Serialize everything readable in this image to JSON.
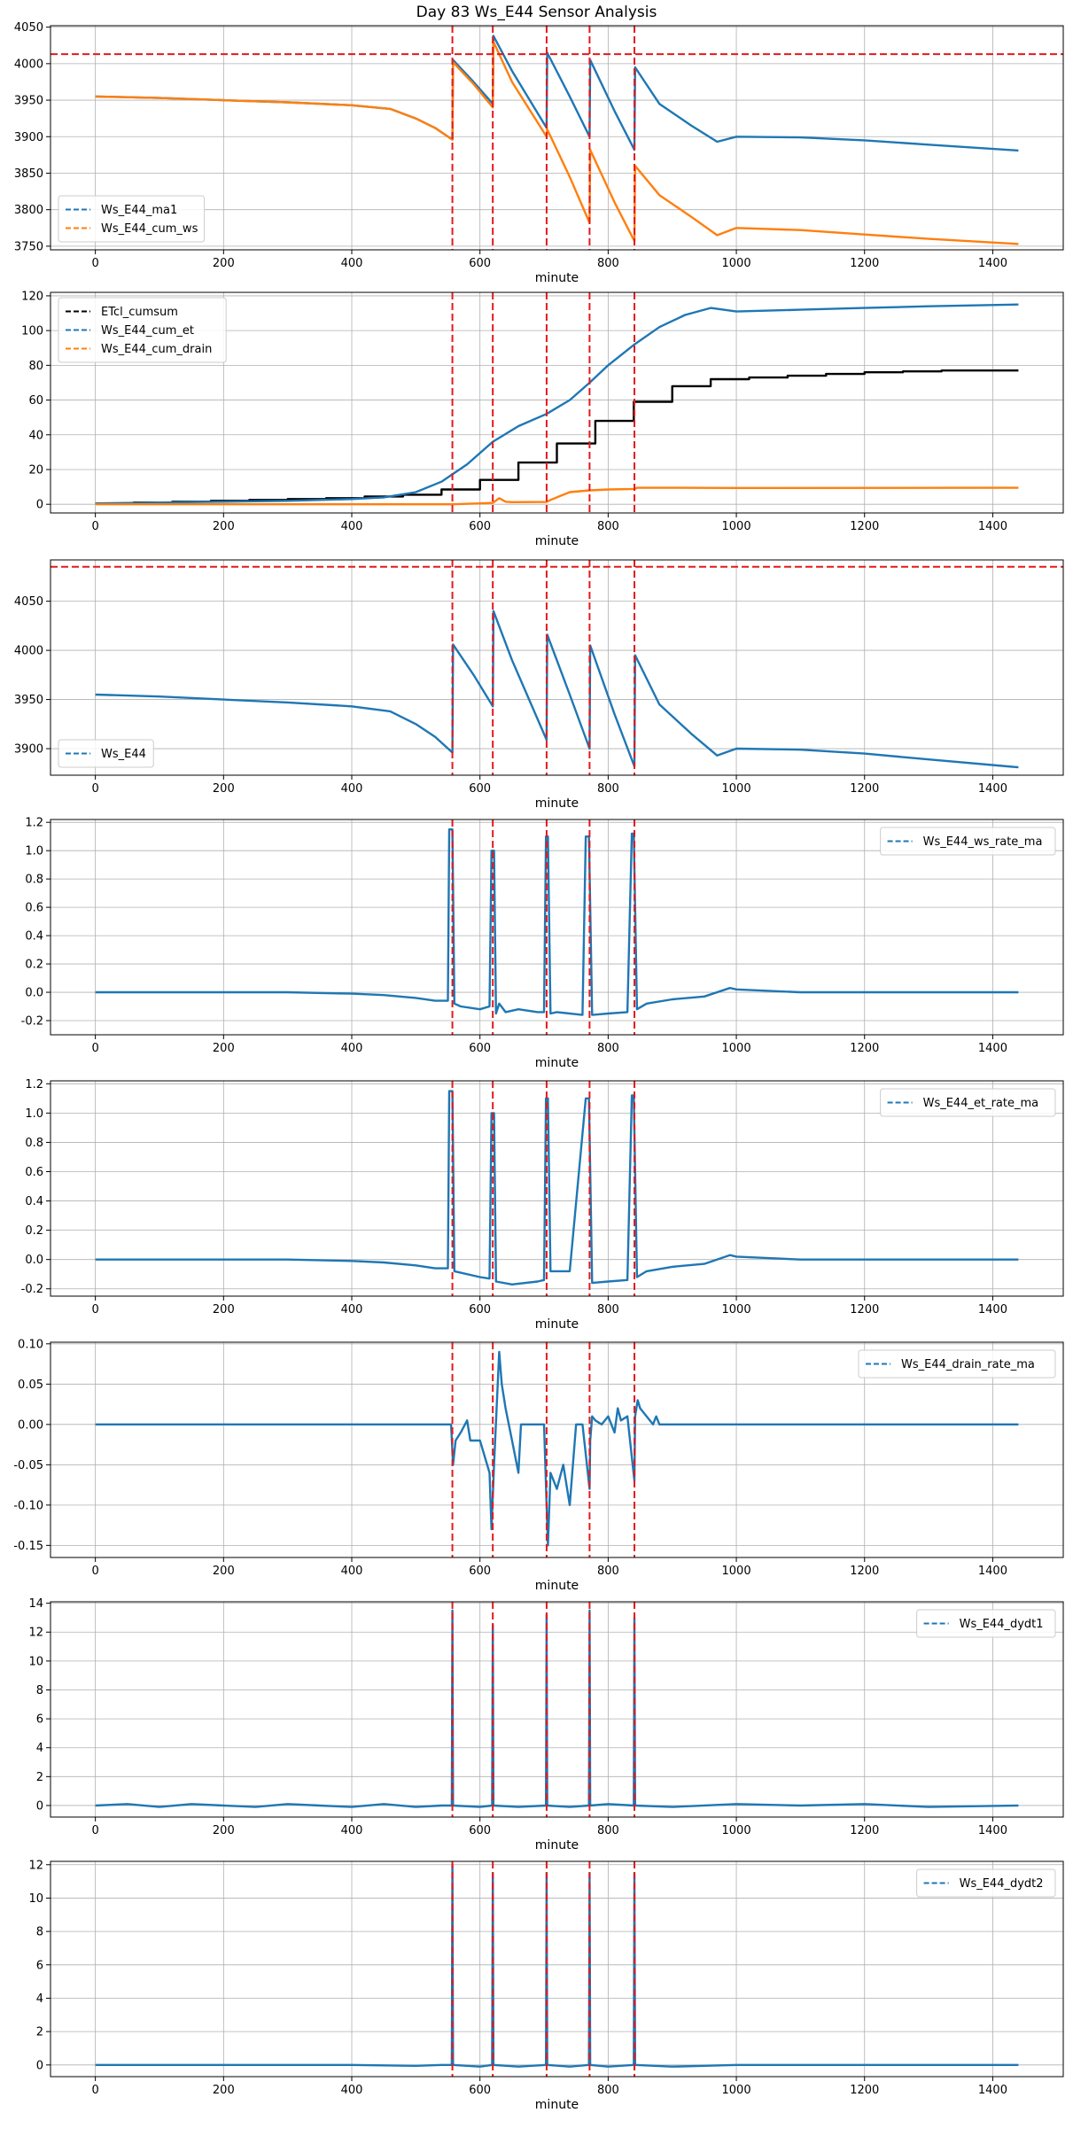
{
  "figure": {
    "title": "Day 83 Ws_E44 Sensor Analysis"
  },
  "colors": {
    "blue": "#1f77b4",
    "orange": "#ff7f0e",
    "black": "#000000",
    "red": "#e31a1c",
    "grid": "#b0b0b0"
  },
  "chart_data": [
    {
      "type": "line",
      "xlabel": "minute",
      "xlim": [
        -70,
        1510
      ],
      "ylim": [
        3745,
        4052
      ],
      "xticks": [
        0,
        200,
        400,
        600,
        800,
        1000,
        1200,
        1400
      ],
      "yticks": [
        3750,
        3800,
        3850,
        3900,
        3950,
        4000,
        4050
      ],
      "legend": "lower-left",
      "hlines": [
        4013
      ],
      "vlines": [
        557,
        620,
        704,
        771,
        841
      ],
      "series": [
        {
          "name": "Ws_E44_ma1",
          "color": "blue",
          "x": [
            0,
            100,
            200,
            300,
            400,
            460,
            500,
            530,
            557,
            558,
            590,
            620,
            621,
            650,
            704,
            705,
            740,
            771,
            772,
            810,
            841,
            842,
            880,
            930,
            970,
            1000,
            1100,
            1200,
            1300,
            1440
          ],
          "y": [
            3955,
            3953,
            3950,
            3947,
            3943,
            3938,
            3925,
            3912,
            3896,
            4005,
            3975,
            3945,
            4038,
            3990,
            3912,
            4015,
            3955,
            3900,
            4005,
            3935,
            3882,
            3995,
            3945,
            3915,
            3893,
            3900,
            3899,
            3895,
            3889,
            3881
          ]
        },
        {
          "name": "Ws_E44_cum_ws",
          "color": "orange",
          "x": [
            0,
            100,
            200,
            300,
            400,
            460,
            500,
            530,
            557,
            558,
            590,
            620,
            621,
            650,
            704,
            705,
            740,
            771,
            772,
            810,
            841,
            842,
            880,
            930,
            970,
            1000,
            1100,
            1200,
            1300,
            1440
          ],
          "y": [
            3955,
            3953,
            3950,
            3947,
            3943,
            3938,
            3925,
            3912,
            3896,
            4002,
            3972,
            3940,
            4030,
            3975,
            3900,
            3910,
            3845,
            3782,
            3882,
            3810,
            3757,
            3860,
            3820,
            3790,
            3765,
            3775,
            3772,
            3766,
            3760,
            3753
          ]
        }
      ]
    },
    {
      "type": "line",
      "xlabel": "minute",
      "xlim": [
        -70,
        1510
      ],
      "ylim": [
        -5,
        122
      ],
      "xticks": [
        0,
        200,
        400,
        600,
        800,
        1000,
        1200,
        1400
      ],
      "yticks": [
        0,
        20,
        40,
        60,
        80,
        100,
        120
      ],
      "legend": "upper-left",
      "hlines": [],
      "vlines": [
        557,
        620,
        704,
        771,
        841
      ],
      "series": [
        {
          "name": "ETcl_cumsum",
          "color": "black",
          "step": true,
          "x": [
            0,
            60,
            120,
            180,
            240,
            300,
            360,
            420,
            480,
            540,
            600,
            660,
            720,
            780,
            840,
            900,
            960,
            1020,
            1080,
            1140,
            1200,
            1260,
            1320,
            1380,
            1440
          ],
          "y": [
            0.5,
            1,
            1.5,
            2,
            2.5,
            3,
            3.5,
            4.5,
            5.5,
            8.5,
            14,
            24,
            35,
            48,
            59,
            68,
            72,
            73,
            74,
            75,
            76,
            76.5,
            77,
            77,
            77
          ]
        },
        {
          "name": "Ws_E44_cum_et",
          "color": "blue",
          "x": [
            0,
            100,
            200,
            300,
            400,
            450,
            500,
            540,
            580,
            620,
            660,
            704,
            740,
            771,
            800,
            841,
            880,
            920,
            960,
            980,
            1000,
            1100,
            1200,
            1300,
            1440
          ],
          "y": [
            0.5,
            1,
            1.5,
            2,
            3,
            4,
            7,
            13,
            23,
            36,
            45,
            52,
            60,
            70,
            80,
            92,
            102,
            109,
            113,
            112,
            111,
            112,
            113,
            114,
            115
          ]
        },
        {
          "name": "Ws_E44_cum_drain",
          "color": "orange",
          "x": [
            0,
            200,
            400,
            557,
            600,
            620,
            630,
            640,
            650,
            704,
            710,
            740,
            771,
            800,
            841,
            845,
            900,
            1000,
            1440
          ],
          "y": [
            0,
            0,
            0,
            0,
            0.5,
            0.8,
            3.5,
            1.5,
            1.2,
            1.3,
            2.5,
            7,
            8,
            8.5,
            8.8,
            9.5,
            9.5,
            9.4,
            9.5
          ]
        }
      ]
    },
    {
      "type": "line",
      "xlabel": "minute",
      "xlim": [
        -70,
        1510
      ],
      "ylim": [
        3873,
        4092
      ],
      "xticks": [
        0,
        200,
        400,
        600,
        800,
        1000,
        1200,
        1400
      ],
      "yticks": [
        3900,
        3950,
        4000,
        4050
      ],
      "legend": "lower-left",
      "hlines": [
        4085
      ],
      "vlines": [
        557,
        620,
        704,
        771,
        841
      ],
      "series": [
        {
          "name": "Ws_E44",
          "color": "blue",
          "x": [
            0,
            100,
            200,
            300,
            400,
            460,
            500,
            530,
            557,
            558,
            590,
            620,
            621,
            650,
            704,
            705,
            740,
            771,
            772,
            810,
            841,
            842,
            880,
            930,
            970,
            1000,
            1100,
            1200,
            1300,
            1440
          ],
          "y": [
            3955,
            3953,
            3950,
            3947,
            3943,
            3938,
            3925,
            3912,
            3896,
            4006,
            3975,
            3943,
            4040,
            3990,
            3909,
            4016,
            3955,
            3900,
            4005,
            3935,
            3882,
            3995,
            3945,
            3915,
            3893,
            3900,
            3899,
            3895,
            3889,
            3881
          ]
        }
      ]
    },
    {
      "type": "line",
      "xlabel": "minute",
      "xlim": [
        -70,
        1510
      ],
      "ylim": [
        -0.3,
        1.22
      ],
      "xticks": [
        0,
        200,
        400,
        600,
        800,
        1000,
        1200,
        1400
      ],
      "yticks": [
        -0.2,
        0.0,
        0.2,
        0.4,
        0.6,
        0.8,
        1.0,
        1.2
      ],
      "legend": "upper-right",
      "hlines": [],
      "vlines": [
        557,
        620,
        704,
        771,
        841
      ],
      "series": [
        {
          "name": "Ws_E44_ws_rate_ma",
          "color": "blue",
          "x": [
            0,
            100,
            200,
            300,
            400,
            450,
            500,
            530,
            550,
            552,
            557,
            560,
            570,
            600,
            615,
            618,
            622,
            625,
            630,
            640,
            660,
            690,
            700,
            703,
            706,
            710,
            720,
            760,
            765,
            770,
            775,
            800,
            830,
            837,
            840,
            845,
            860,
            900,
            950,
            990,
            1000,
            1100,
            1200,
            1300,
            1440
          ],
          "y": [
            0,
            0,
            0,
            0,
            -0.01,
            -0.02,
            -0.04,
            -0.06,
            -0.06,
            1.15,
            1.15,
            -0.08,
            -0.1,
            -0.12,
            -0.1,
            1.0,
            1.0,
            -0.15,
            -0.08,
            -0.14,
            -0.12,
            -0.14,
            -0.14,
            1.1,
            1.1,
            -0.15,
            -0.14,
            -0.16,
            1.1,
            1.1,
            -0.16,
            -0.15,
            -0.14,
            1.12,
            1.12,
            -0.12,
            -0.08,
            -0.05,
            -0.03,
            0.03,
            0.02,
            0,
            0,
            0,
            0
          ]
        }
      ]
    },
    {
      "type": "line",
      "xlabel": "minute",
      "xlim": [
        -70,
        1510
      ],
      "ylim": [
        -0.25,
        1.22
      ],
      "xticks": [
        0,
        200,
        400,
        600,
        800,
        1000,
        1200,
        1400
      ],
      "yticks": [
        -0.2,
        0.0,
        0.2,
        0.4,
        0.6,
        0.8,
        1.0,
        1.2
      ],
      "legend": "upper-right",
      "hlines": [],
      "vlines": [
        557,
        620,
        704,
        771,
        841
      ],
      "series": [
        {
          "name": "Ws_E44_et_rate_ma",
          "color": "blue",
          "x": [
            0,
            100,
            200,
            300,
            400,
            450,
            500,
            530,
            550,
            552,
            557,
            560,
            600,
            615,
            618,
            622,
            625,
            650,
            690,
            700,
            703,
            706,
            710,
            740,
            765,
            770,
            775,
            800,
            830,
            837,
            840,
            845,
            860,
            900,
            950,
            990,
            1000,
            1100,
            1200,
            1300,
            1440
          ],
          "y": [
            0,
            0,
            0,
            0,
            -0.01,
            -0.02,
            -0.04,
            -0.06,
            -0.06,
            1.15,
            1.15,
            -0.08,
            -0.12,
            -0.13,
            1.0,
            1.0,
            -0.15,
            -0.17,
            -0.15,
            -0.14,
            1.1,
            1.1,
            -0.08,
            -0.08,
            1.1,
            1.1,
            -0.16,
            -0.15,
            -0.14,
            1.12,
            1.12,
            -0.12,
            -0.08,
            -0.05,
            -0.03,
            0.03,
            0.02,
            0,
            0,
            0,
            0
          ]
        }
      ]
    },
    {
      "type": "line",
      "xlabel": "minute",
      "xlim": [
        -70,
        1510
      ],
      "ylim": [
        -0.165,
        0.102
      ],
      "xticks": [
        0,
        200,
        400,
        600,
        800,
        1000,
        1200,
        1400
      ],
      "yticks": [
        -0.15,
        -0.1,
        -0.05,
        0.0,
        0.05,
        0.1
      ],
      "legend": "upper-right",
      "hlines": [],
      "vlines": [
        557,
        620,
        704,
        771,
        841
      ],
      "series": [
        {
          "name": "Ws_E44_drain_rate_ma",
          "color": "blue",
          "x": [
            0,
            200,
            400,
            555,
            558,
            562,
            570,
            580,
            585,
            600,
            615,
            618,
            622,
            626,
            630,
            634,
            640,
            650,
            660,
            664,
            700,
            704,
            706,
            710,
            720,
            730,
            740,
            750,
            760,
            771,
            772,
            775,
            780,
            790,
            800,
            810,
            815,
            820,
            830,
            841,
            842,
            846,
            850,
            860,
            870,
            875,
            880,
            1000,
            1200,
            1440
          ],
          "y": [
            0,
            0,
            0,
            0,
            -0.05,
            -0.02,
            -0.01,
            0.005,
            -0.02,
            -0.02,
            -0.06,
            -0.13,
            -0.05,
            0.02,
            0.09,
            0.05,
            0.02,
            -0.02,
            -0.06,
            0,
            0,
            -0.1,
            -0.15,
            -0.06,
            -0.08,
            -0.05,
            -0.1,
            0,
            0,
            -0.08,
            -0.02,
            0.01,
            0.005,
            0,
            0.01,
            -0.01,
            0.02,
            0.005,
            0.01,
            -0.07,
            0.01,
            0.03,
            0.02,
            0.01,
            0,
            0.01,
            0,
            0,
            0,
            0
          ]
        }
      ]
    },
    {
      "type": "line",
      "xlabel": "minute",
      "xlim": [
        -70,
        1510
      ],
      "ylim": [
        -0.8,
        14.1
      ],
      "xticks": [
        0,
        200,
        400,
        600,
        800,
        1000,
        1200,
        1400
      ],
      "yticks": [
        0,
        2,
        4,
        6,
        8,
        10,
        12,
        14
      ],
      "legend": "upper-right",
      "hlines": [],
      "vlines": [
        557,
        620,
        704,
        771,
        841
      ],
      "series": [
        {
          "name": "Ws_E44_dydt1",
          "color": "blue",
          "x": [
            0,
            50,
            100,
            150,
            200,
            250,
            300,
            350,
            400,
            450,
            500,
            540,
            556,
            557,
            558,
            600,
            619,
            620,
            621,
            660,
            703,
            704,
            705,
            740,
            770,
            771,
            772,
            800,
            840,
            841,
            842,
            900,
            1000,
            1100,
            1200,
            1300,
            1440
          ],
          "y": [
            0,
            0.1,
            -0.1,
            0.1,
            0,
            -0.1,
            0.1,
            0,
            -0.1,
            0.1,
            -0.1,
            0,
            0,
            13.5,
            0,
            -0.1,
            0,
            12.5,
            0,
            -0.1,
            0,
            13.2,
            0,
            -0.1,
            0,
            13.5,
            0,
            0.1,
            0,
            13.0,
            0,
            -0.1,
            0.1,
            0,
            0.1,
            -0.1,
            0
          ]
        }
      ]
    },
    {
      "type": "line",
      "xlabel": "minute",
      "xlim": [
        -70,
        1510
      ],
      "ylim": [
        -0.7,
        12.2
      ],
      "xticks": [
        0,
        200,
        400,
        600,
        800,
        1000,
        1200,
        1400
      ],
      "yticks": [
        0,
        2,
        4,
        6,
        8,
        10,
        12
      ],
      "legend": "upper-right",
      "hlines": [],
      "vlines": [
        557,
        620,
        704,
        771,
        841
      ],
      "series": [
        {
          "name": "Ws_E44_dydt2",
          "color": "blue",
          "x": [
            0,
            100,
            200,
            300,
            400,
            500,
            540,
            556,
            557,
            558,
            600,
            619,
            620,
            621,
            660,
            703,
            704,
            705,
            740,
            770,
            771,
            772,
            800,
            840,
            841,
            842,
            900,
            1000,
            1100,
            1200,
            1300,
            1440
          ],
          "y": [
            0,
            0,
            0,
            0,
            0,
            -0.05,
            0,
            0,
            12.0,
            0,
            -0.1,
            0,
            11.5,
            0,
            -0.1,
            0,
            11.5,
            0,
            -0.1,
            0,
            11.5,
            0,
            -0.1,
            0,
            11.5,
            0,
            -0.1,
            0,
            0,
            0,
            0,
            0
          ]
        }
      ]
    }
  ]
}
